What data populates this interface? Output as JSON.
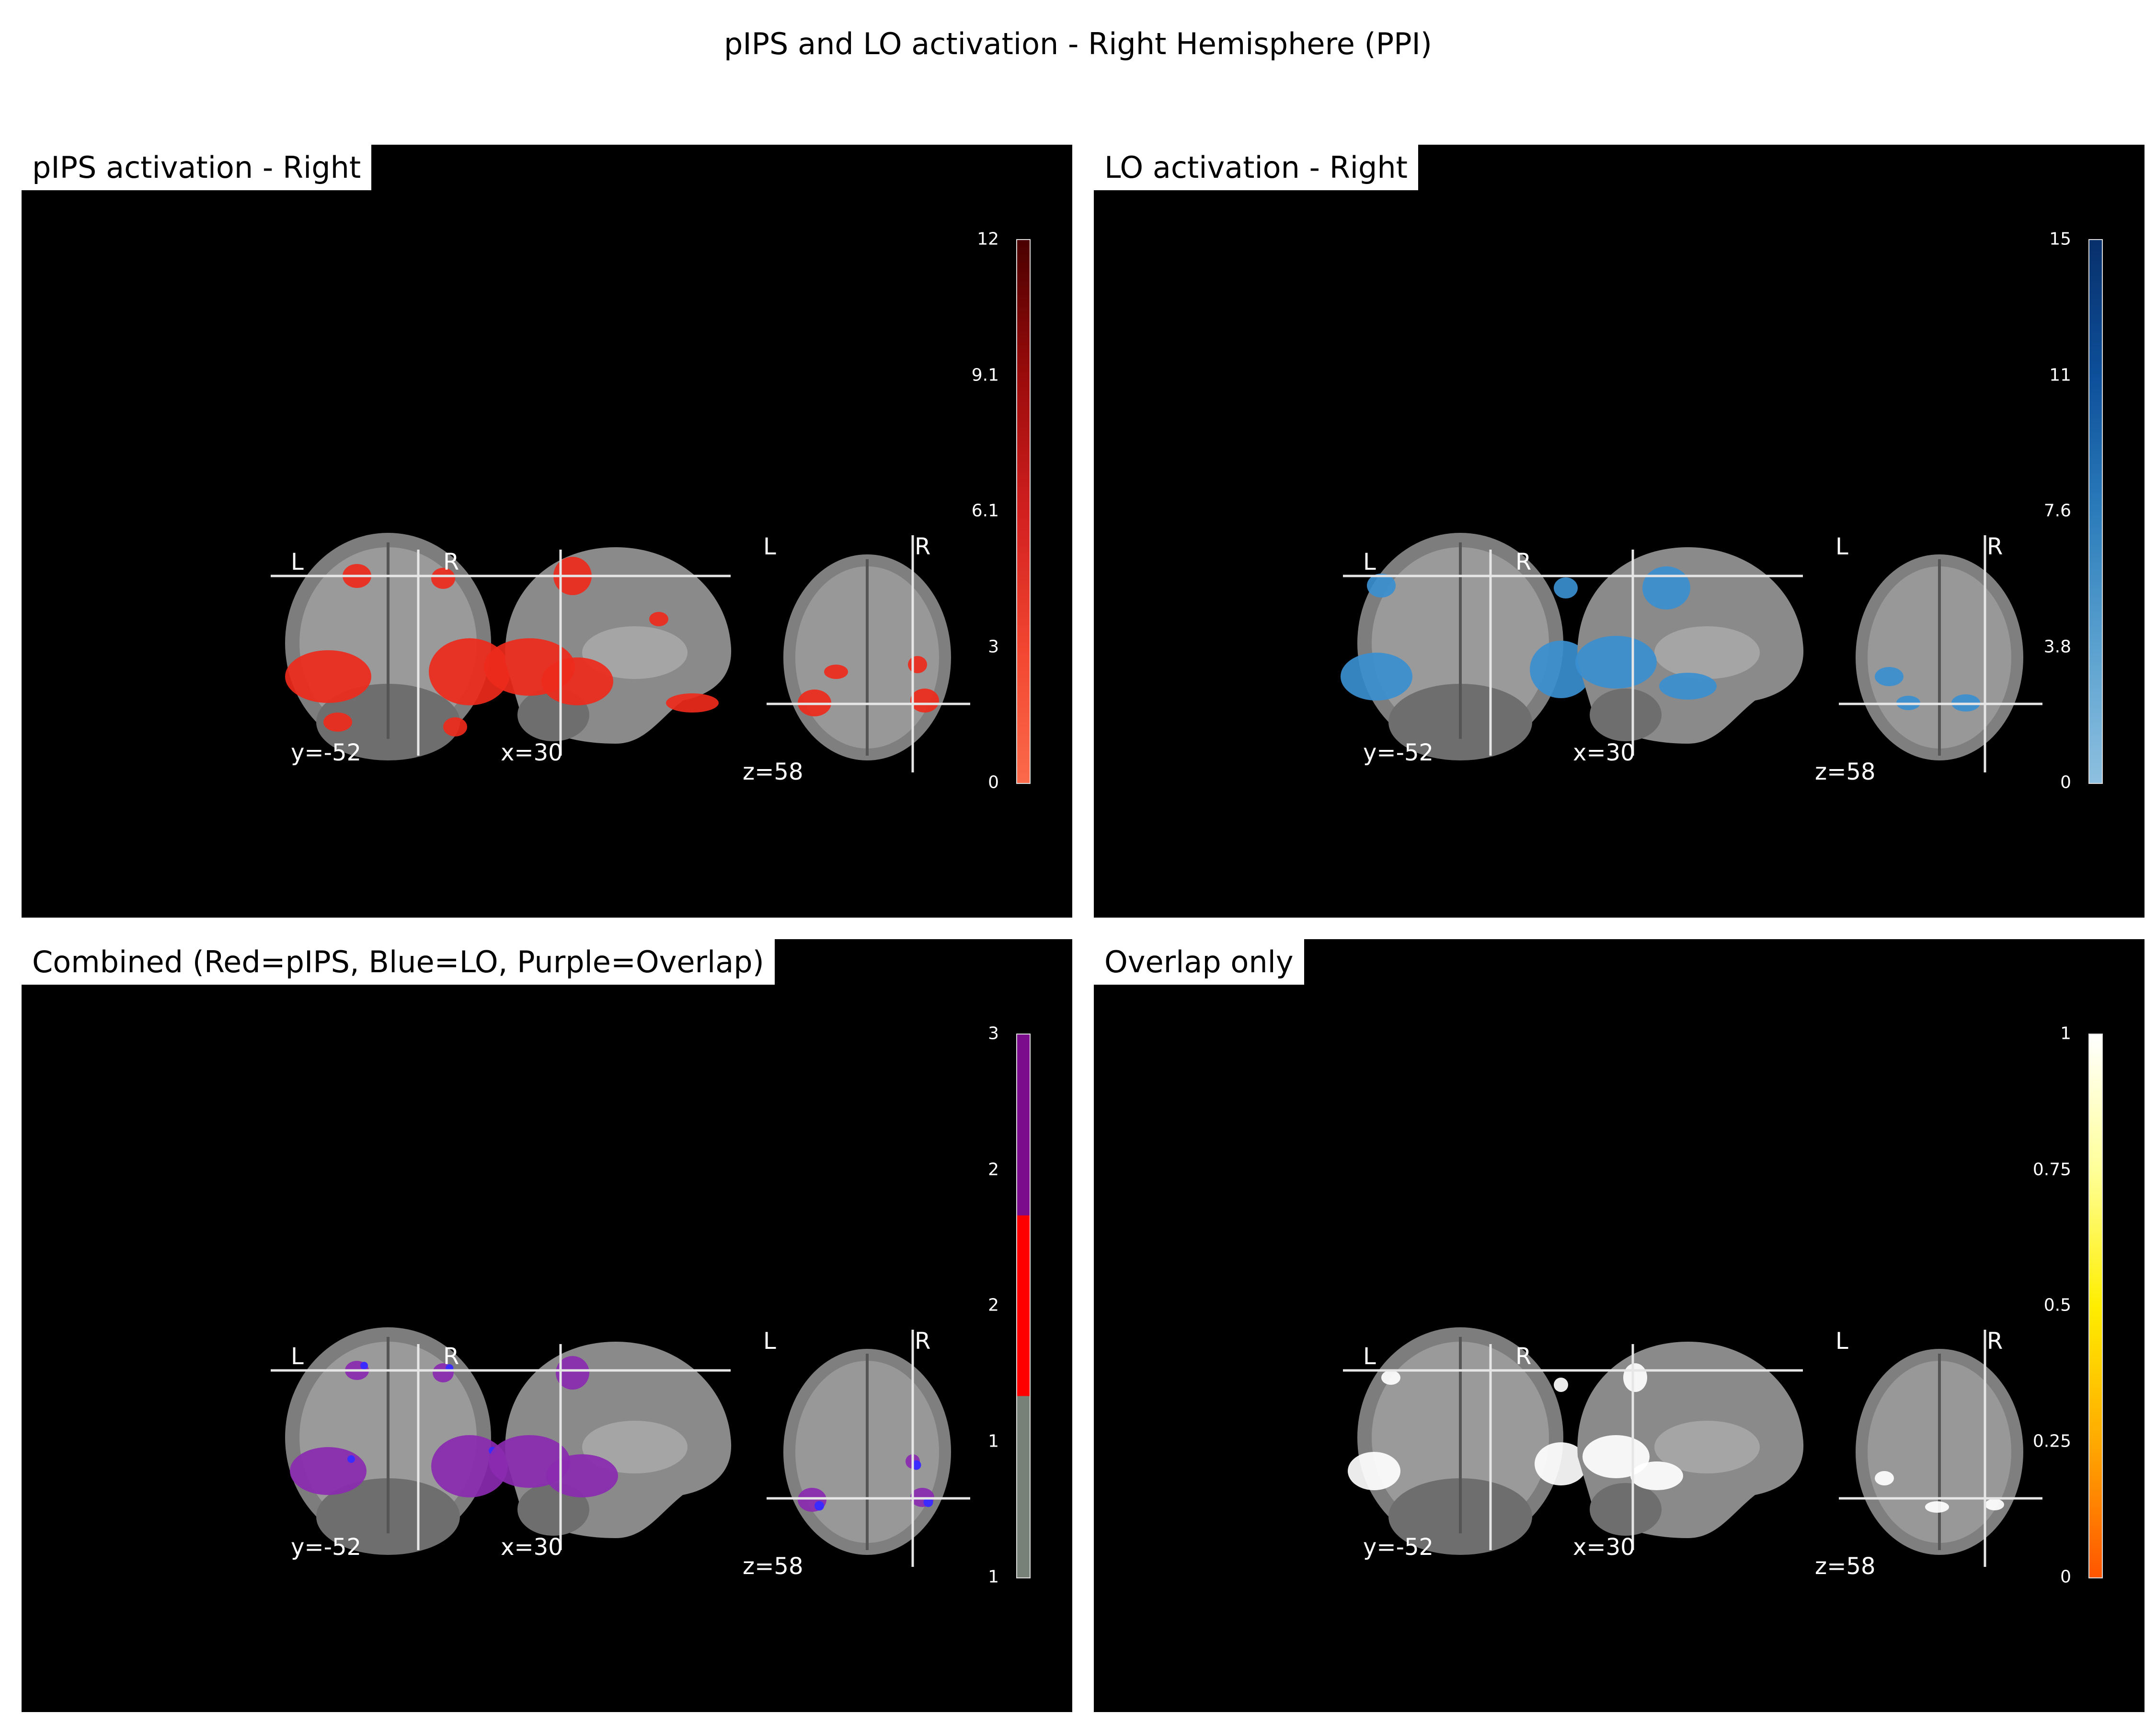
{
  "figure": {
    "title": "pIPS and LO activation - Right Hemisphere (PPI)"
  },
  "panels": [
    {
      "title": "pIPS activation - Right",
      "colorbar": {
        "ticks": [
          "12",
          "9.1",
          "6.1",
          "3",
          "0"
        ],
        "colors": [
          "#4a0000",
          "#9b0b0b",
          "#d11f1f",
          "#f24530",
          "#fb6a4a"
        ]
      },
      "overlay_color": "#ee2a1c",
      "slice_labels": {
        "coronal": "y=-52",
        "sagittal": "x=30",
        "axial": "z=58"
      },
      "orientation": {
        "left": "L",
        "right": "R"
      }
    },
    {
      "title": "LO activation - Right",
      "colorbar": {
        "ticks": [
          "15",
          "11",
          "7.6",
          "3.8",
          "0"
        ],
        "colors": [
          "#08306b",
          "#0d4f9a",
          "#2b7bba",
          "#5aa1cf",
          "#8ec0e0"
        ]
      },
      "overlay_color": "#3a8fd0",
      "slice_labels": {
        "coronal": "y=-52",
        "sagittal": "x=30",
        "axial": "z=58"
      },
      "orientation": {
        "left": "L",
        "right": "R"
      }
    },
    {
      "title": "Combined (Red=pIPS, Blue=LO, Purple=Overlap)",
      "colorbar": {
        "ticks": [
          "3",
          "2",
          "2",
          "1",
          "1"
        ],
        "segments": [
          "#7b0c8c",
          "#ff0000",
          "#778177"
        ]
      },
      "overlay_color": "#8a2ab0",
      "overlay_color_2": "#3b2bff",
      "slice_labels": {
        "coronal": "y=-52",
        "sagittal": "x=30",
        "axial": "z=58"
      },
      "orientation": {
        "left": "L",
        "right": "R"
      }
    },
    {
      "title": "Overlap only",
      "colorbar": {
        "ticks": [
          "1",
          "0.75",
          "0.5",
          "0.25",
          "0"
        ],
        "colors": [
          "#ffffff",
          "#ffff99",
          "#ffee00",
          "#ffaa00",
          "#ff5500"
        ]
      },
      "overlay_color": "#ffffff",
      "slice_labels": {
        "coronal": "y=-52",
        "sagittal": "x=30",
        "axial": "z=58"
      },
      "orientation": {
        "left": "L",
        "right": "R"
      }
    }
  ]
}
